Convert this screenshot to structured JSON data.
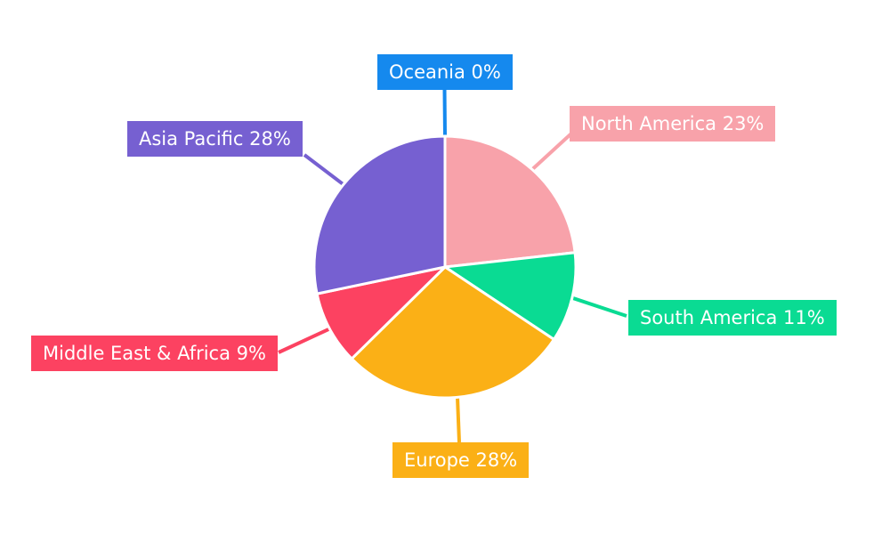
{
  "chart_data": {
    "type": "pie",
    "title": "",
    "direction": "clockwise",
    "start_angle_deg": -90,
    "background": "#FFFFFF",
    "label_text_color": "#FFFFFF",
    "slice_gap_color": "#FFFFFF",
    "slices": [
      {
        "name": "Oceania",
        "pct": 0,
        "display": "Oceania 0%",
        "color": "#1589EE"
      },
      {
        "name": "North America",
        "pct": 23,
        "display": "North America 23%",
        "color": "#F8A2AA"
      },
      {
        "name": "South America",
        "pct": 11,
        "display": "South America 11%",
        "color": "#0ADB93"
      },
      {
        "name": "Europe",
        "pct": 28,
        "display": "Europe 28%",
        "color": "#FBB016"
      },
      {
        "name": "Middle East & Africa",
        "pct": 9,
        "display": "Middle East & Africa 9%",
        "color": "#FC4261"
      },
      {
        "name": "Asia Pacific",
        "pct": 28,
        "display": "Asia Pacific 28%",
        "color": "#7660D1"
      }
    ]
  }
}
